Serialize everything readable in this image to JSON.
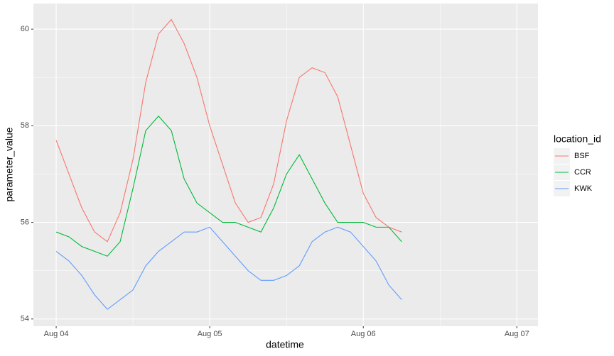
{
  "chart_data": {
    "type": "line",
    "x_label": "datetime",
    "y_label": "parameter_value",
    "legend_title": "location_id",
    "legend_position": "right",
    "grid": true,
    "x": [
      0,
      2,
      4,
      6,
      8,
      10,
      12,
      14,
      16,
      18,
      20,
      22,
      24,
      26,
      28,
      30,
      32,
      34,
      36,
      38,
      40,
      42,
      44,
      46,
      48,
      50,
      52,
      54
    ],
    "series": [
      {
        "name": "BSF",
        "color": "#F8766D",
        "values": [
          57.7,
          57.0,
          56.3,
          55.8,
          55.6,
          56.2,
          57.3,
          58.9,
          59.9,
          60.2,
          59.7,
          59.0,
          58.0,
          57.2,
          56.4,
          56.0,
          56.1,
          56.8,
          58.1,
          59.0,
          59.2,
          59.1,
          58.6,
          57.6,
          56.6,
          56.1,
          55.9,
          55.8
        ]
      },
      {
        "name": "CCR",
        "color": "#00BA38",
        "values": [
          55.8,
          55.7,
          55.5,
          55.4,
          55.3,
          55.6,
          56.7,
          57.9,
          58.2,
          57.9,
          56.9,
          56.4,
          56.2,
          56.0,
          56.0,
          55.9,
          55.8,
          56.3,
          57.0,
          57.4,
          56.9,
          56.4,
          56.0,
          56.0,
          56.0,
          55.9,
          55.9,
          55.6
        ]
      },
      {
        "name": "KWK",
        "color": "#619CFF",
        "values": [
          55.4,
          55.2,
          54.9,
          54.5,
          54.2,
          54.4,
          54.6,
          55.1,
          55.4,
          55.6,
          55.8,
          55.8,
          55.9,
          55.6,
          55.3,
          55.0,
          54.8,
          54.8,
          54.9,
          55.1,
          55.6,
          55.8,
          55.9,
          55.8,
          55.5,
          55.2,
          54.7,
          54.4
        ]
      }
    ],
    "xlim": [
      -3.56,
      75.3
    ],
    "xticks": [
      {
        "value": 0,
        "label": "Aug 04"
      },
      {
        "value": 24,
        "label": "Aug 05"
      },
      {
        "value": 48,
        "label": "Aug 06"
      },
      {
        "value": 72,
        "label": "Aug 07"
      }
    ],
    "ylim": [
      53.85,
      60.53
    ],
    "yticks": [
      54,
      56,
      58,
      60
    ]
  }
}
